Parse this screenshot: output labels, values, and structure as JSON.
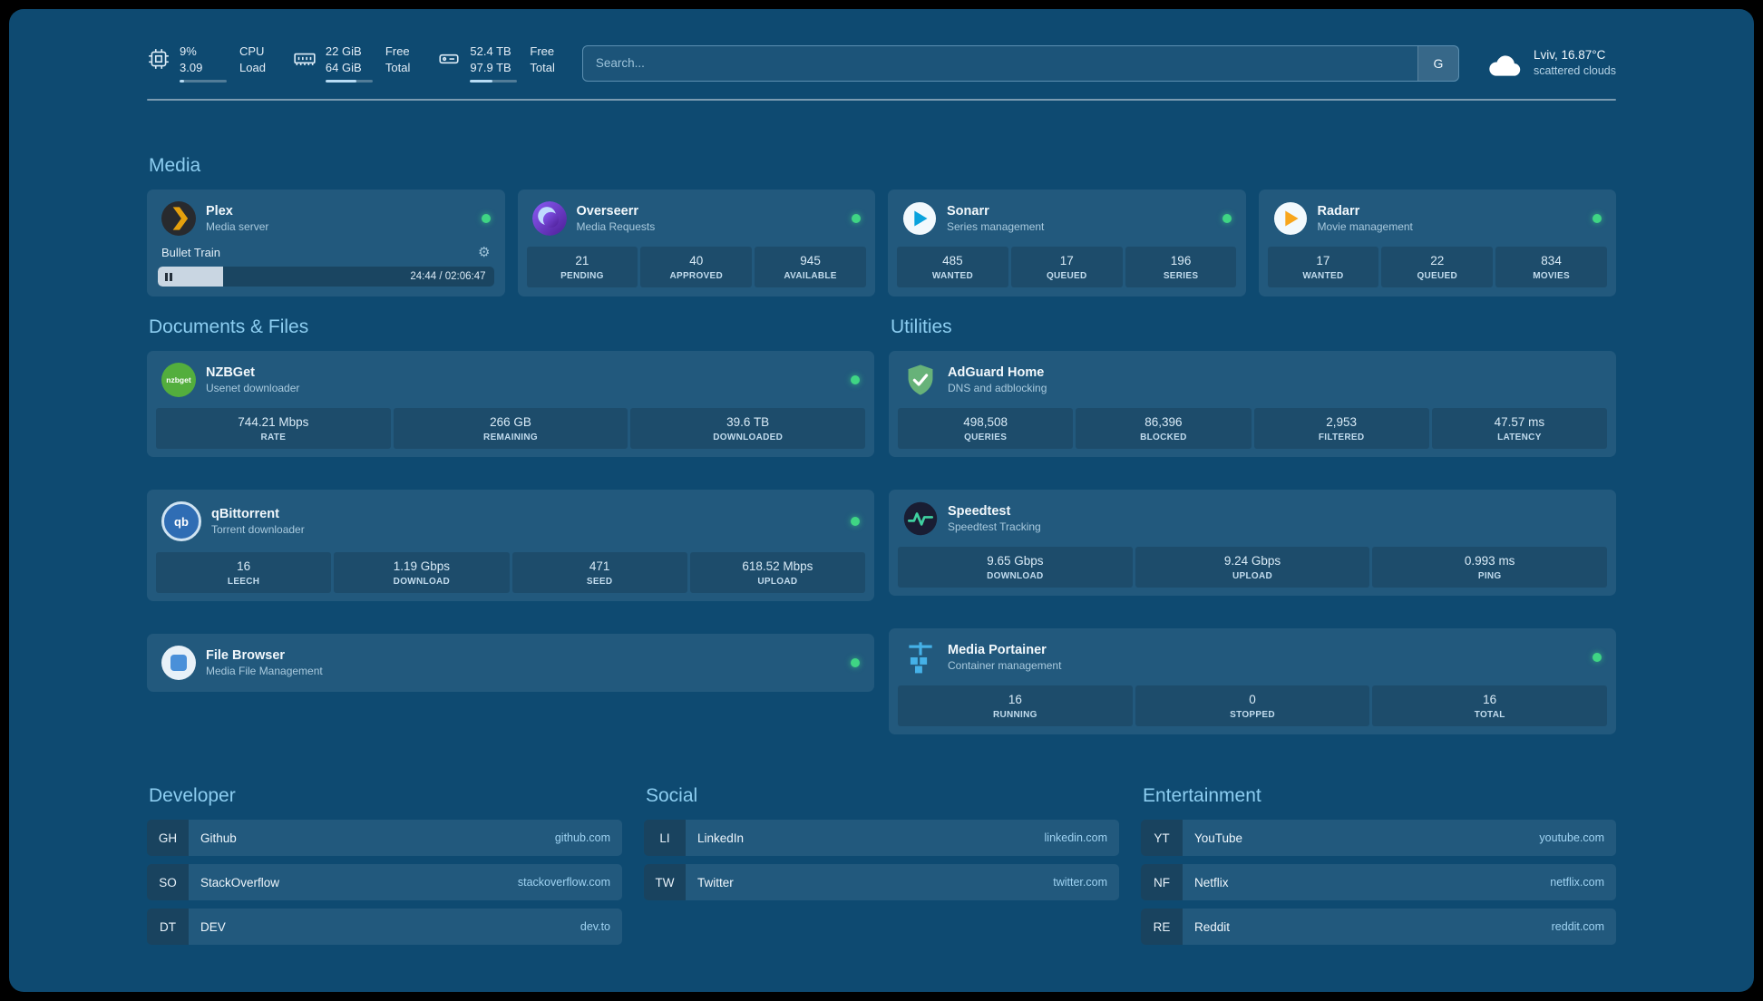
{
  "topbar": {
    "resources": [
      {
        "values": [
          "9%",
          "3.09"
        ],
        "labels": [
          "CPU",
          "Load"
        ],
        "bar_pct": 9
      },
      {
        "values": [
          "22 GiB",
          "64 GiB"
        ],
        "labels": [
          "Free",
          "Total"
        ],
        "bar_pct": 66
      },
      {
        "values": [
          "52.4 TB",
          "97.9 TB"
        ],
        "labels": [
          "Free",
          "Total"
        ],
        "bar_pct": 47
      }
    ],
    "search": {
      "placeholder": "Search...",
      "provider_label": "G"
    },
    "weather": {
      "location": "Lviv, 16.87°C",
      "condition": "scattered clouds"
    }
  },
  "groups": [
    {
      "title": "Media",
      "services": [
        {
          "name": "Plex",
          "subtitle": "Media server",
          "online": true,
          "now_playing": {
            "title": "Bullet Train",
            "time": "24:44 / 02:06:47",
            "progress_pct": 19.5
          }
        },
        {
          "name": "Overseerr",
          "subtitle": "Media Requests",
          "online": true,
          "stats": [
            {
              "value": "21",
              "label": "PENDING"
            },
            {
              "value": "40",
              "label": "APPROVED"
            },
            {
              "value": "945",
              "label": "AVAILABLE"
            }
          ]
        },
        {
          "name": "Sonarr",
          "subtitle": "Series management",
          "online": true,
          "stats": [
            {
              "value": "485",
              "label": "WANTED"
            },
            {
              "value": "17",
              "label": "QUEUED"
            },
            {
              "value": "196",
              "label": "SERIES"
            }
          ]
        },
        {
          "name": "Radarr",
          "subtitle": "Movie management",
          "online": true,
          "stats": [
            {
              "value": "17",
              "label": "WANTED"
            },
            {
              "value": "22",
              "label": "QUEUED"
            },
            {
              "value": "834",
              "label": "MOVIES"
            }
          ]
        }
      ]
    },
    {
      "title": "Documents & Files",
      "services": [
        {
          "name": "NZBGet",
          "subtitle": "Usenet downloader",
          "online": true,
          "stats": [
            {
              "value": "744.21 Mbps",
              "label": "RATE"
            },
            {
              "value": "266 GB",
              "label": "REMAINING"
            },
            {
              "value": "39.6 TB",
              "label": "DOWNLOADED"
            }
          ]
        },
        {
          "name": "qBittorrent",
          "subtitle": "Torrent downloader",
          "online": true,
          "stats": [
            {
              "value": "16",
              "label": "LEECH"
            },
            {
              "value": "1.19 Gbps",
              "label": "DOWNLOAD"
            },
            {
              "value": "471",
              "label": "SEED"
            },
            {
              "value": "618.52 Mbps",
              "label": "UPLOAD"
            }
          ]
        },
        {
          "name": "File Browser",
          "subtitle": "Media File Management",
          "online": true
        }
      ]
    },
    {
      "title": "Utilities",
      "services": [
        {
          "name": "AdGuard Home",
          "subtitle": "DNS and adblocking",
          "stats": [
            {
              "value": "498,508",
              "label": "QUERIES"
            },
            {
              "value": "86,396",
              "label": "BLOCKED"
            },
            {
              "value": "2,953",
              "label": "FILTERED"
            },
            {
              "value": "47.57 ms",
              "label": "LATENCY"
            }
          ]
        },
        {
          "name": "Speedtest",
          "subtitle": "Speedtest Tracking",
          "stats": [
            {
              "value": "9.65 Gbps",
              "label": "DOWNLOAD"
            },
            {
              "value": "9.24 Gbps",
              "label": "UPLOAD"
            },
            {
              "value": "0.993 ms",
              "label": "PING"
            }
          ]
        },
        {
          "name": "Media Portainer",
          "subtitle": "Container management",
          "online": true,
          "stats": [
            {
              "value": "16",
              "label": "RUNNING"
            },
            {
              "value": "0",
              "label": "STOPPED"
            },
            {
              "value": "16",
              "label": "TOTAL"
            }
          ]
        }
      ]
    }
  ],
  "bookmarks": [
    {
      "title": "Developer",
      "items": [
        {
          "abbr": "GH",
          "name": "Github",
          "url": "github.com"
        },
        {
          "abbr": "SO",
          "name": "StackOverflow",
          "url": "stackoverflow.com"
        },
        {
          "abbr": "DT",
          "name": "DEV",
          "url": "dev.to"
        }
      ]
    },
    {
      "title": "Social",
      "items": [
        {
          "abbr": "LI",
          "name": "LinkedIn",
          "url": "linkedin.com"
        },
        {
          "abbr": "TW",
          "name": "Twitter",
          "url": "twitter.com"
        }
      ]
    },
    {
      "title": "Entertainment",
      "items": [
        {
          "abbr": "YT",
          "name": "YouTube",
          "url": "youtube.com"
        },
        {
          "abbr": "NF",
          "name": "Netflix",
          "url": "netflix.com"
        },
        {
          "abbr": "RE",
          "name": "Reddit",
          "url": "reddit.com"
        }
      ]
    }
  ]
}
